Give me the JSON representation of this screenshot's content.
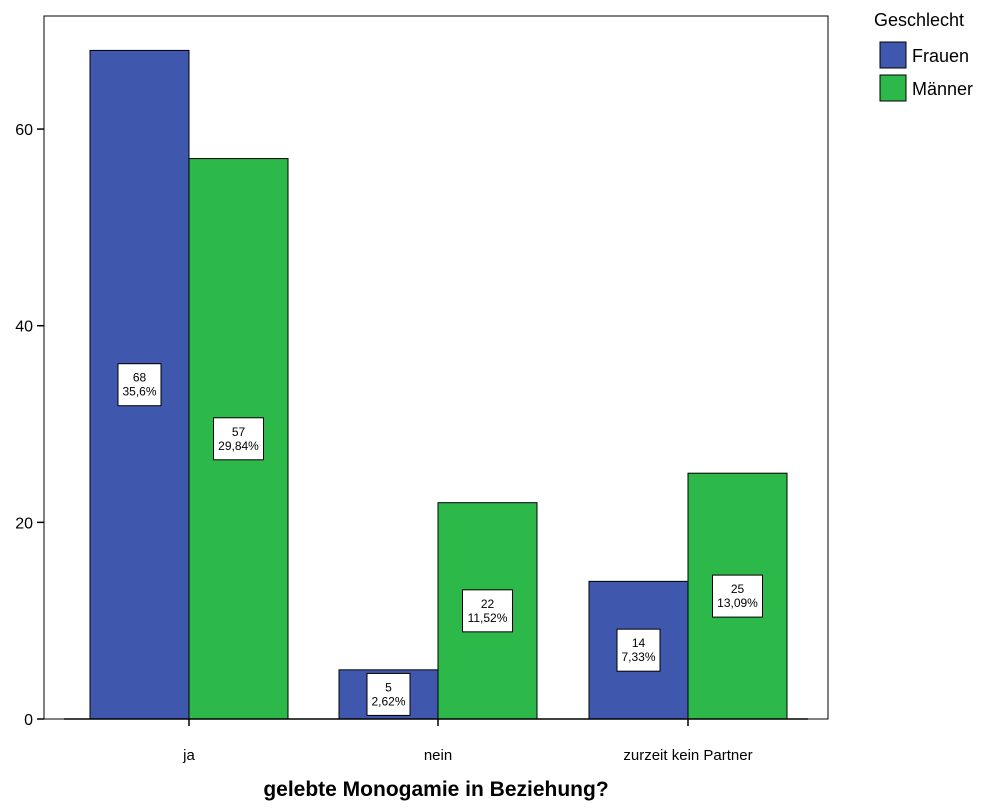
{
  "chart_data": {
    "type": "bar",
    "title": "",
    "xlabel": "gelebte Monogamie in Beziehung?",
    "ylabel": "",
    "categories": [
      "ja",
      "nein",
      "zurzeit kein Partner"
    ],
    "series": [
      {
        "name": "Frauen",
        "color": "#3f58ad",
        "values": [
          68,
          5,
          14
        ],
        "percent_labels": [
          "35,6%",
          "2,62%",
          "7,33%"
        ]
      },
      {
        "name": "Männer",
        "color": "#2db84a",
        "values": [
          57,
          22,
          25
        ],
        "percent_labels": [
          "29,84%",
          "11,52%",
          "13,09%"
        ]
      }
    ],
    "ylim": [
      0,
      71.5
    ],
    "yticks": [
      0,
      20,
      40,
      60
    ],
    "grid": false,
    "legend": {
      "title": "Geschlecht",
      "position": "top-right"
    }
  }
}
